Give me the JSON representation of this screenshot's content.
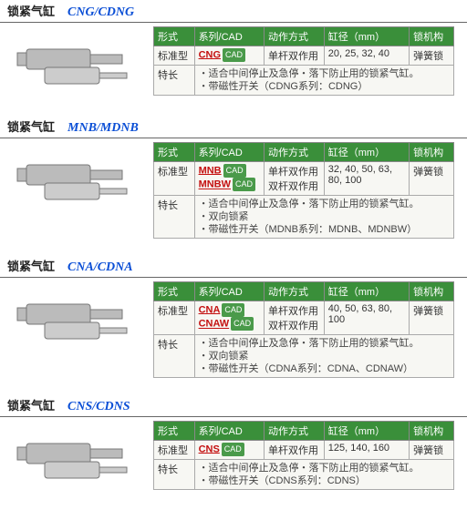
{
  "headers": {
    "type": "形式",
    "series": "系列/CAD",
    "action": "动作方式",
    "bore": "缸径（mm）",
    "lock": "锁机构"
  },
  "labels": {
    "std": "标准型",
    "features": "特长",
    "cad": "CAD"
  },
  "sections": [
    {
      "title": "锁紧气缸",
      "model": "CNG/CDNG",
      "series": [
        {
          "name": "CNG"
        }
      ],
      "actions": [
        "单杆双作用"
      ],
      "bore": "20, 25, 32, 40",
      "lock": "弹簧锁",
      "features": [
        "・适合中间停止及急停・落下防止用的锁紧气缸。",
        "・带磁性开关（CDNG系列：CDNG）"
      ]
    },
    {
      "title": "锁紧气缸",
      "model": "MNB/MDNB",
      "series": [
        {
          "name": "MNB"
        },
        {
          "name": "MNBW"
        }
      ],
      "actions": [
        "单杆双作用",
        "双杆双作用"
      ],
      "bore": "32, 40, 50, 63, 80, 100",
      "lock": "弹簧锁",
      "features": [
        "・适合中间停止及急停・落下防止用的锁紧气缸。",
        "・双向锁紧",
        "・带磁性开关（MDNB系列：MDNB、MDNBW）"
      ]
    },
    {
      "title": "锁紧气缸",
      "model": "CNA/CDNA",
      "series": [
        {
          "name": "CNA"
        },
        {
          "name": "CNAW"
        }
      ],
      "actions": [
        "单杆双作用",
        "双杆双作用"
      ],
      "bore": "40, 50, 63, 80, 100",
      "lock": "弹簧锁",
      "features": [
        "・适合中间停止及急停・落下防止用的锁紧气缸。",
        "・双向锁紧",
        "・带磁性开关（CDNA系列：CDNA、CDNAW）"
      ]
    },
    {
      "title": "锁紧气缸",
      "model": "CNS/CDNS",
      "series": [
        {
          "name": "CNS"
        }
      ],
      "actions": [
        "单杆双作用"
      ],
      "bore": "125, 140, 160",
      "lock": "弹簧锁",
      "features": [
        "・适合中间停止及急停・落下防止用的锁紧气缸。",
        "・带磁性开关（CDNS系列：CDNS）"
      ]
    }
  ],
  "colors": {
    "header_bg": "#3a8f3a",
    "header_text": "#ffffff",
    "model_text": "#0b4fd6",
    "link_text": "#c41010",
    "cell_bg": "#f7f7f3",
    "border": "#aaaaaa"
  }
}
